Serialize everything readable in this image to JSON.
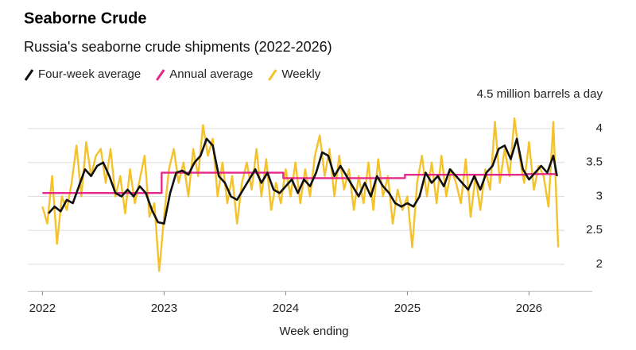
{
  "chart_data": {
    "type": "line",
    "title": "Seaborne Crude",
    "subtitle": "Russia's seaborne crude shipments (2022-2026)",
    "x_label": "Week ending",
    "xlim": [
      2021.88,
      2026.52
    ],
    "xticks": [
      2022,
      2023,
      2024,
      2025,
      2026
    ],
    "ylim": [
      1.6,
      4.5
    ],
    "yticks": [
      2.0,
      2.5,
      3.0,
      3.5,
      4.0,
      {
        "value": 4.5,
        "label": "4.5 million barrels a day"
      }
    ],
    "grid": true,
    "series": [
      {
        "name": "Four-week average",
        "color": "#111111",
        "x": [
          2022.05,
          2022.1,
          2022.15,
          2022.2,
          2022.25,
          2022.3,
          2022.35,
          2022.4,
          2022.45,
          2022.5,
          2022.55,
          2022.6,
          2022.65,
          2022.7,
          2022.75,
          2022.8,
          2022.85,
          2022.9,
          2022.95,
          2023.0,
          2023.05,
          2023.1,
          2023.15,
          2023.2,
          2023.25,
          2023.3,
          2023.35,
          2023.4,
          2023.45,
          2023.5,
          2023.55,
          2023.6,
          2023.65,
          2023.7,
          2023.75,
          2023.8,
          2023.85,
          2023.9,
          2023.95,
          2024.05,
          2024.1,
          2024.15,
          2024.2,
          2024.25,
          2024.3,
          2024.35,
          2024.4,
          2024.45,
          2024.5,
          2024.55,
          2024.6,
          2024.65,
          2024.7,
          2024.75,
          2024.8,
          2024.85,
          2024.9,
          2024.95,
          2025.0,
          2025.05,
          2025.1,
          2025.15,
          2025.2,
          2025.25,
          2025.3,
          2025.35,
          2025.4,
          2025.45,
          2025.5,
          2025.55,
          2025.6,
          2025.65,
          2025.7,
          2025.75,
          2025.8,
          2025.85,
          2025.9,
          2025.95,
          2026.0,
          2026.05,
          2026.1,
          2026.15,
          2026.2,
          2026.23
        ],
        "values": [
          2.75,
          2.85,
          2.78,
          2.95,
          2.9,
          3.15,
          3.4,
          3.3,
          3.45,
          3.5,
          3.3,
          3.05,
          3.0,
          3.1,
          3.0,
          3.15,
          3.05,
          2.8,
          2.62,
          2.6,
          3.05,
          3.35,
          3.38,
          3.32,
          3.5,
          3.6,
          3.85,
          3.75,
          3.3,
          3.2,
          3.0,
          2.95,
          3.1,
          3.25,
          3.4,
          3.2,
          3.35,
          3.1,
          3.05,
          3.25,
          3.05,
          3.25,
          3.15,
          3.35,
          3.65,
          3.6,
          3.3,
          3.45,
          3.3,
          3.15,
          3.0,
          3.2,
          3.0,
          3.3,
          3.15,
          3.05,
          2.9,
          2.85,
          2.9,
          2.85,
          3.0,
          3.35,
          3.2,
          3.3,
          3.15,
          3.4,
          3.3,
          3.2,
          3.1,
          3.3,
          3.1,
          3.35,
          3.45,
          3.7,
          3.75,
          3.55,
          3.85,
          3.4,
          3.25,
          3.35,
          3.45,
          3.35,
          3.6,
          3.3
        ]
      },
      {
        "name": "Annual average",
        "color": "#e6288a",
        "x": [
          2022.0,
          2022.98,
          2022.98,
          2023.98,
          2023.98,
          2024.98,
          2024.98,
          2025.98,
          2025.98,
          2026.23
        ],
        "values": [
          3.05,
          3.05,
          3.35,
          3.35,
          3.27,
          3.27,
          3.32,
          3.32,
          3.33,
          3.33
        ]
      },
      {
        "name": "Weekly",
        "color": "#f4c22b",
        "x": [
          2022.0,
          2022.04,
          2022.08,
          2022.12,
          2022.16,
          2022.2,
          2022.24,
          2022.28,
          2022.32,
          2022.36,
          2022.4,
          2022.44,
          2022.48,
          2022.52,
          2022.56,
          2022.6,
          2022.64,
          2022.68,
          2022.72,
          2022.76,
          2022.8,
          2022.84,
          2022.88,
          2022.92,
          2022.96,
          2023.0,
          2023.04,
          2023.08,
          2023.12,
          2023.16,
          2023.2,
          2023.24,
          2023.28,
          2023.32,
          2023.36,
          2023.4,
          2023.44,
          2023.48,
          2023.52,
          2023.56,
          2023.6,
          2023.64,
          2023.68,
          2023.72,
          2023.76,
          2023.8,
          2023.84,
          2023.88,
          2023.92,
          2023.96,
          2024.0,
          2024.04,
          2024.08,
          2024.12,
          2024.16,
          2024.2,
          2024.24,
          2024.28,
          2024.32,
          2024.36,
          2024.4,
          2024.44,
          2024.48,
          2024.52,
          2024.56,
          2024.6,
          2024.64,
          2024.68,
          2024.72,
          2024.76,
          2024.8,
          2024.84,
          2024.88,
          2024.92,
          2024.96,
          2025.0,
          2025.04,
          2025.08,
          2025.12,
          2025.16,
          2025.2,
          2025.24,
          2025.28,
          2025.32,
          2025.36,
          2025.4,
          2025.44,
          2025.48,
          2025.52,
          2025.56,
          2025.6,
          2025.64,
          2025.68,
          2025.72,
          2025.76,
          2025.8,
          2025.84,
          2025.88,
          2025.92,
          2025.96,
          2026.0,
          2026.04,
          2026.08,
          2026.12,
          2026.16,
          2026.2,
          2026.24
        ],
        "values": [
          2.85,
          2.6,
          3.3,
          2.3,
          3.0,
          2.8,
          3.2,
          3.75,
          3.0,
          3.8,
          3.3,
          3.6,
          3.7,
          3.2,
          3.7,
          3.0,
          3.3,
          2.75,
          3.4,
          2.9,
          3.25,
          3.6,
          2.7,
          2.9,
          1.9,
          2.7,
          3.4,
          3.7,
          3.2,
          3.5,
          3.0,
          3.7,
          3.3,
          4.05,
          3.6,
          3.85,
          3.0,
          3.5,
          2.9,
          3.3,
          2.6,
          3.2,
          3.5,
          3.1,
          3.7,
          3.0,
          3.55,
          2.8,
          3.2,
          2.9,
          3.4,
          3.0,
          3.5,
          2.9,
          3.4,
          3.0,
          3.6,
          3.9,
          3.3,
          3.7,
          3.0,
          3.6,
          3.1,
          3.4,
          2.8,
          3.3,
          2.9,
          3.5,
          2.8,
          3.55,
          3.0,
          3.3,
          2.6,
          3.1,
          2.8,
          3.0,
          2.25,
          3.2,
          3.6,
          3.0,
          3.5,
          2.9,
          3.6,
          3.0,
          3.4,
          3.2,
          2.9,
          3.55,
          2.7,
          3.3,
          2.8,
          3.4,
          3.1,
          4.1,
          3.2,
          3.7,
          3.3,
          4.15,
          3.6,
          3.2,
          3.8,
          3.1,
          3.45,
          3.3,
          2.85,
          4.1,
          2.25
        ]
      }
    ]
  }
}
